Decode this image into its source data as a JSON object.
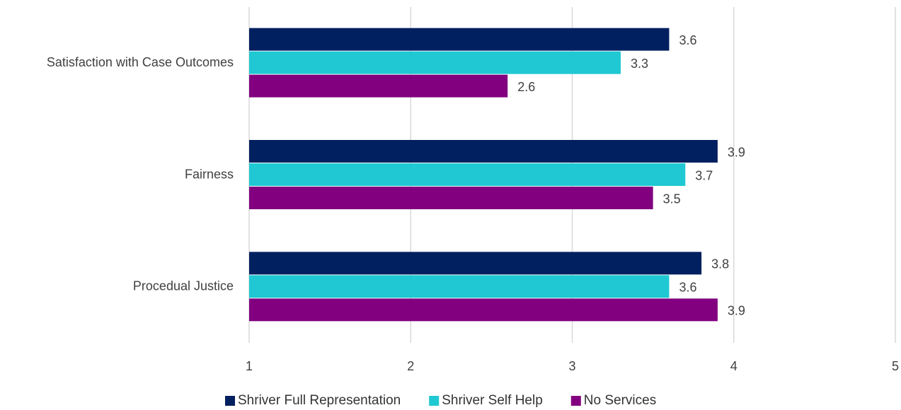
{
  "chart_data": {
    "type": "hbar",
    "categories": [
      "Satisfaction with Case Outcomes",
      "Fairness",
      "Procedual Justice"
    ],
    "series": [
      {
        "name": "Shriver Full Representation",
        "color": "#002060",
        "values": [
          3.6,
          3.9,
          3.8
        ]
      },
      {
        "name": "Shriver Self Help",
        "color": "#1fc8d2",
        "values": [
          3.3,
          3.7,
          3.6
        ]
      },
      {
        "name": "No Services",
        "color": "#820080",
        "values": [
          2.6,
          3.5,
          3.9
        ]
      }
    ],
    "xlim": [
      1,
      5
    ],
    "xticks": [
      1,
      2,
      3,
      4,
      5
    ],
    "grid": true,
    "legend": "bottom"
  }
}
